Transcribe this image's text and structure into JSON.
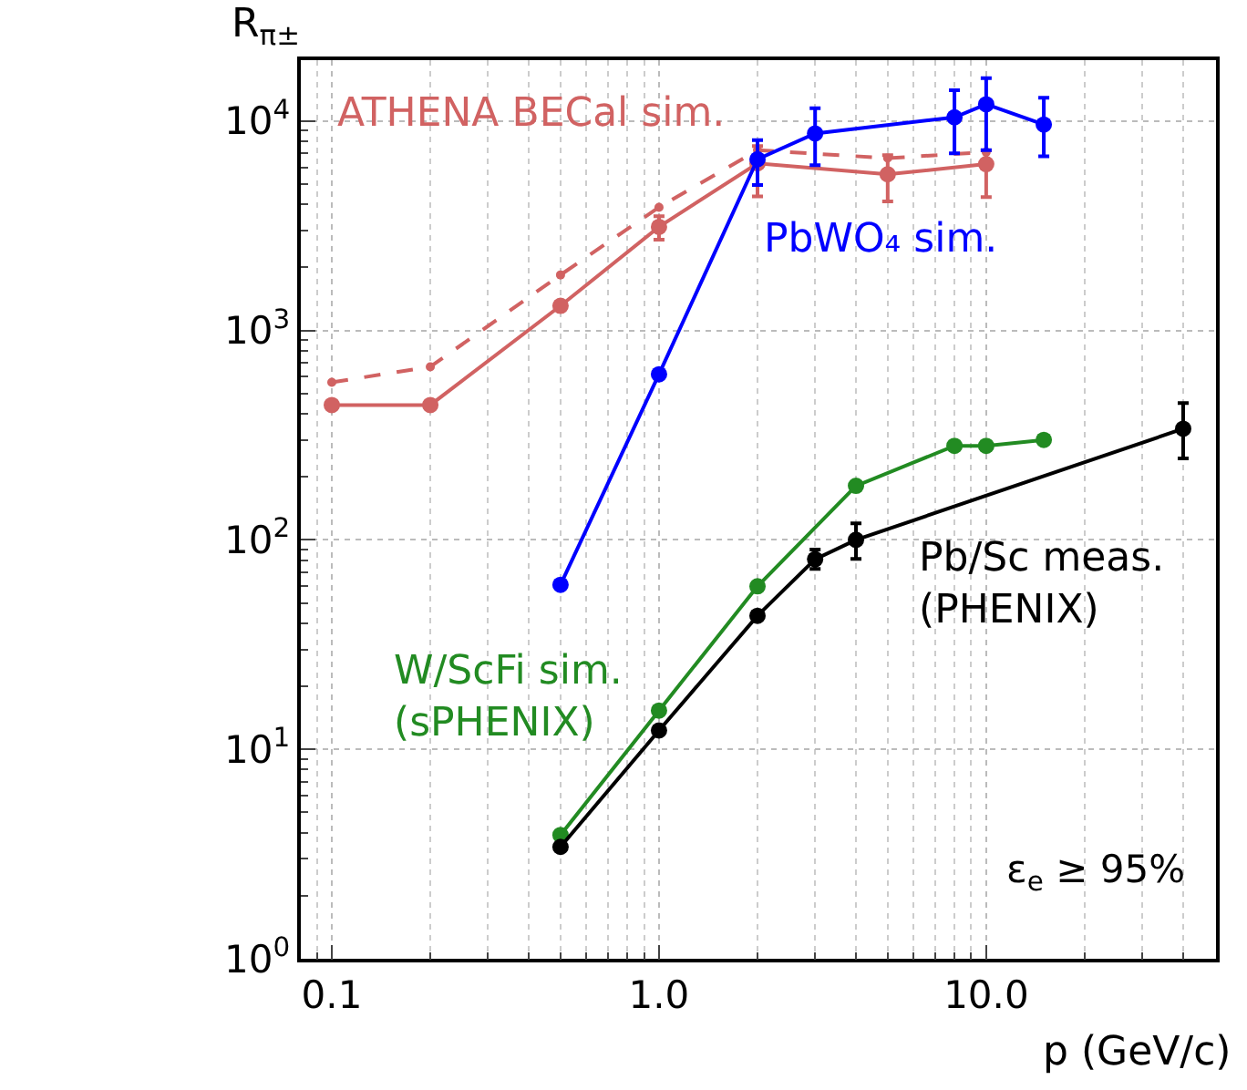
{
  "chart_data": {
    "type": "line",
    "ylabel": "R$_{π±}$",
    "xlabel": "p (GeV/c)",
    "log": "xy",
    "grid": true,
    "marker": "circle",
    "xlim": [
      0.0804,
      50.4
    ],
    "xticks": [
      {
        "value": 0.1,
        "label": "0.1"
      },
      {
        "value": 1,
        "label": "1.0"
      },
      {
        "value": 10,
        "label": "10.0"
      }
    ],
    "ylim": [
      1,
      19500
    ],
    "yticks": [
      {
        "value": 1,
        "label": "10$^{0}$"
      },
      {
        "value": 10,
        "label": "10$^{1}$"
      },
      {
        "value": 100,
        "label": "10$^{2}$"
      },
      {
        "value": 1000,
        "label": "10$^{3}$"
      },
      {
        "value": 10000,
        "label": "10$^{4}$"
      }
    ],
    "annotations": [
      "ε$_{e}$ ≥ 95%"
    ],
    "series": [
      {
        "name": "ATHENA BECal sim.",
        "color": "#d16262",
        "line_style": "solid",
        "x": [
          0.1,
          0.2,
          0.5,
          1,
          2,
          5,
          10
        ],
        "values": [
          440,
          440,
          1310,
          3120,
          6270,
          5560,
          6220
        ],
        "errors": [
          null,
          null,
          null,
          [
            2710,
            3510
          ],
          [
            4360,
            7580
          ],
          [
            4130,
            6870
          ],
          [
            4330,
            7240
          ]
        ]
      },
      {
        "color": "#d16262",
        "line_style": "dashed",
        "x": [
          0.1,
          0.2,
          0.5,
          1,
          2,
          5,
          10
        ],
        "values": [
          565,
          670,
          1840,
          3870,
          7250,
          6640,
          7100
        ]
      },
      {
        "name": "PbWO₄ sim.",
        "color": "#0000ff",
        "line_style": "solid",
        "x": [
          0.5,
          1,
          2,
          3,
          8,
          10,
          15
        ],
        "values": [
          61,
          617,
          6560,
          8710,
          10400,
          12000,
          9610
        ],
        "errors": [
          null,
          null,
          [
            4940,
            8100
          ],
          [
            6140,
            11500
          ],
          [
            7000,
            14000
          ],
          [
            7250,
            16000
          ],
          [
            6780,
            12900
          ]
        ]
      },
      {
        "name": "W/ScFi sim.\n(sPHENIX)",
        "color": "#228b22",
        "line_style": "solid",
        "x": [
          0.5,
          1,
          2,
          4,
          8,
          10,
          15
        ],
        "values": [
          3.9,
          15.3,
          60,
          181,
          281,
          281,
          300
        ]
      },
      {
        "name": "Pb/Sc meas.\n(PHENIX)",
        "color": "#000000",
        "line_style": "solid",
        "x": [
          0.5,
          1,
          2,
          3,
          4,
          40
        ],
        "values": [
          3.42,
          12.3,
          43.4,
          80.8,
          100,
          339
        ],
        "errors": [
          null,
          null,
          null,
          [
            72.7,
            89.8
          ],
          [
            81,
            120
          ],
          [
            245,
            450
          ]
        ]
      }
    ]
  }
}
